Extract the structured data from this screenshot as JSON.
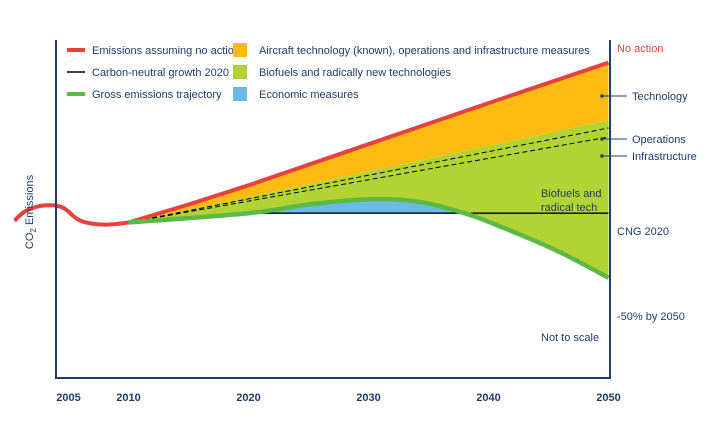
{
  "chart_data": {
    "type": "area",
    "title": "",
    "ylabel_main": "CO",
    "ylabel_sub": "2",
    "ylabel_rest": " Emissions",
    "x_ticks": [
      2005,
      2010,
      2020,
      2030,
      2040,
      2050
    ],
    "xlim": [
      2000.5,
      2050
    ],
    "ylim": [
      0,
      100
    ],
    "legend": [
      {
        "label": "Emissions assuming no action",
        "color": "#e8413d",
        "kind": "line"
      },
      {
        "label": "Carbon-neutral growth 2020",
        "color": "#000000",
        "kind": "line-thin"
      },
      {
        "label": "Gross emissions trajectory",
        "color": "#5cb947",
        "kind": "line"
      },
      {
        "label": "Aircraft technology (known), operations and infrastructure measures",
        "color": "#fdbb11",
        "kind": "patch"
      },
      {
        "label": "Biofuels and radically new technologies",
        "color": "#b3d334",
        "kind": "patch"
      },
      {
        "label": "Economic measures",
        "color": "#6bb9e6",
        "kind": "patch"
      }
    ],
    "colors": {
      "red": "#e8413d",
      "green": "#5cb947",
      "orange": "#fdbb11",
      "lime": "#b3d334",
      "blue": "#6bb9e6",
      "navy": "#1f3d6b"
    },
    "series": {
      "history": [
        [
          2000.5,
          42.1
        ],
        [
          2001.5,
          45.5
        ],
        [
          2003,
          47.2
        ],
        [
          2004.5,
          46.5
        ],
        [
          2006,
          42.1
        ],
        [
          2008,
          40.8
        ],
        [
          2010,
          41.5
        ]
      ],
      "no_action": [
        [
          2010,
          41.5
        ],
        [
          2015,
          47.5
        ],
        [
          2020,
          53.9
        ],
        [
          2030,
          67.6
        ],
        [
          2040,
          81.3
        ],
        [
          2050,
          94.8
        ]
      ],
      "technology_boundary": [
        [
          2010,
          41.5
        ],
        [
          2020,
          50.0
        ],
        [
          2030,
          58.5
        ],
        [
          2040,
          67.0
        ],
        [
          2050,
          75.6
        ]
      ],
      "operations_boundary": [
        [
          2010,
          41.5
        ],
        [
          2050,
          73.0
        ]
      ],
      "infrastructure_boundary": [
        [
          2010,
          41.5
        ],
        [
          2050,
          70.0
        ]
      ],
      "cng_2020": [
        [
          2020,
          44.6
        ],
        [
          2050,
          44.6
        ]
      ],
      "gross_trajectory": [
        [
          2010,
          41.5
        ],
        [
          2020,
          44.6
        ],
        [
          2025,
          47.5
        ],
        [
          2030,
          49.2
        ],
        [
          2034,
          48.5
        ],
        [
          2038,
          44.6
        ],
        [
          2042,
          38.5
        ],
        [
          2046,
          31.5
        ],
        [
          2050,
          23.1
        ]
      ]
    },
    "annotations": {
      "no_action": "No action",
      "technology": "Technology",
      "operations": "Operations",
      "infrastructure": "Infrastructure",
      "biofuels_line1": "Biofuels and",
      "biofuels_line2": "radical tech",
      "cng": "CNG 2020",
      "minus50": "-50% by 2050",
      "not_to_scale": "Not to scale"
    }
  }
}
